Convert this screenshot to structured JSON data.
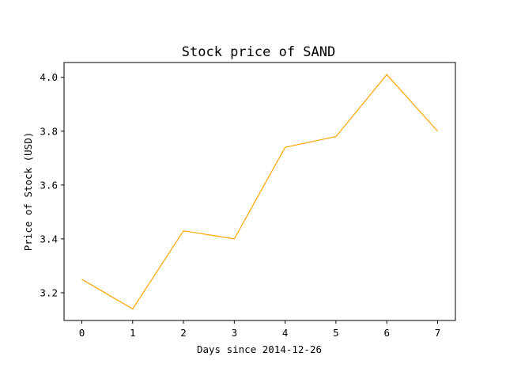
{
  "chart_data": {
    "type": "line",
    "title": "Stock price of SAND",
    "xlabel": "Days since 2014-12-26",
    "ylabel": "Price of Stock (USD)",
    "x": [
      0,
      1,
      2,
      3,
      4,
      5,
      6,
      7
    ],
    "series": [
      {
        "values": [
          3.25,
          3.14,
          3.43,
          3.4,
          3.74,
          3.78,
          4.01,
          3.8
        ],
        "color": "#ffa500"
      }
    ],
    "xlim": [
      -0.35,
      7.35
    ],
    "ylim": [
      3.097,
      4.055
    ],
    "xticks": [
      0,
      1,
      2,
      3,
      4,
      5,
      6,
      7
    ],
    "xtick_labels": [
      "0",
      "1",
      "2",
      "3",
      "4",
      "5",
      "6",
      "7"
    ],
    "yticks": [
      3.2,
      3.4,
      3.6,
      3.8,
      4.0
    ],
    "ytick_labels": [
      "3.2",
      "3.4",
      "3.6",
      "3.8",
      "4.0"
    ],
    "grid": false,
    "legend": "none"
  }
}
